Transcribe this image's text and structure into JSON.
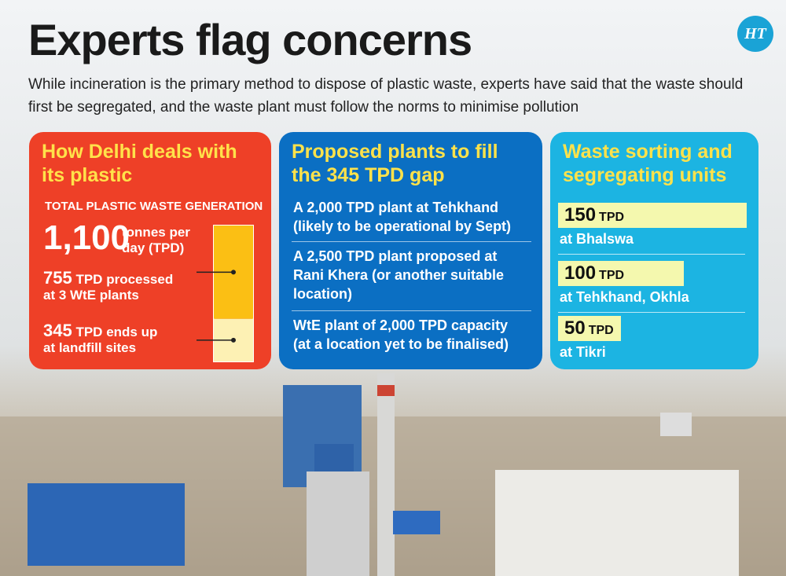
{
  "header": {
    "title": "Experts flag concerns",
    "subtitle": "While incineration is the primary method to dispose of plastic waste, experts have said that the waste should first be segregated, and the waste plant must follow the norms to minimise pollution",
    "logo": "HT"
  },
  "delhi_panel": {
    "heading": "How Delhi deals with its plastic",
    "label": "TOTAL PLASTIC WASTE GENERATION",
    "total": {
      "value": 1100,
      "label": "1,100"
    },
    "total_unit": "tonnes per day (TPD)",
    "processed": {
      "value": 755,
      "unit": "TPD",
      "text": "processed",
      "detail": "at 3 WtE plants"
    },
    "landfill": {
      "value": 345,
      "unit": "TPD",
      "text": "ends up",
      "detail": "at landfill sites"
    }
  },
  "plants_panel": {
    "heading": "Proposed plants to fill the 345 TPD gap",
    "items": [
      "A 2,000 TPD plant at Tehkhand (likely to be operational by Sept)",
      "A 2,500 TPD plant proposed at Rani Khera  (or another suitable location)",
      "WtE plant of 2,000 TPD capacity (at a location yet to be finalised)"
    ]
  },
  "units_panel": {
    "heading": "Waste sorting and segregating units",
    "units": [
      {
        "value": 150,
        "unit": "TPD",
        "location": "at Bhalswa"
      },
      {
        "value": 100,
        "unit": "TPD",
        "location": "at Tehkhand, Okhla"
      },
      {
        "value": 50,
        "unit": "TPD",
        "location": "at Tikri"
      }
    ]
  }
}
